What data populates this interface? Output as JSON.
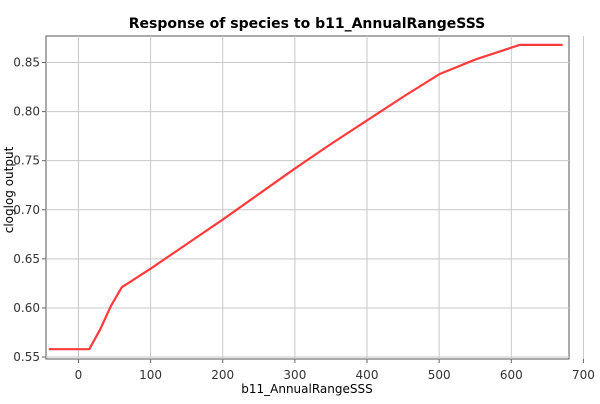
{
  "chart_data": {
    "type": "line",
    "title": "Response of species to b11_AnnualRangeSSS",
    "xlabel": "b11_AnnualRangeSSS",
    "ylabel": "cloglog output",
    "xlim": [
      -45,
      680
    ],
    "ylim": [
      0.548,
      0.877
    ],
    "x_ticks": [
      0,
      100,
      200,
      300,
      400,
      500,
      600,
      700
    ],
    "y_ticks": [
      0.55,
      0.6,
      0.65,
      0.7,
      0.75,
      0.8,
      0.85
    ],
    "x_tick_labels": [
      "0",
      "100",
      "200",
      "300",
      "400",
      "500",
      "600",
      "700"
    ],
    "y_tick_labels": [
      "0.55",
      "0.60",
      "0.65",
      "0.70",
      "0.75",
      "0.80",
      "0.85"
    ],
    "grid": true,
    "line_color": "#ff3b3b",
    "series": [
      {
        "x": [
          -40,
          15,
          30,
          45,
          60,
          100,
          150,
          200,
          250,
          300,
          350,
          400,
          450,
          500,
          550,
          612,
          670
        ],
        "y": [
          0.558,
          0.558,
          0.578,
          0.602,
          0.621,
          0.64,
          0.665,
          0.69,
          0.716,
          0.742,
          0.767,
          0.791,
          0.815,
          0.838,
          0.853,
          0.868,
          0.868
        ]
      }
    ]
  }
}
